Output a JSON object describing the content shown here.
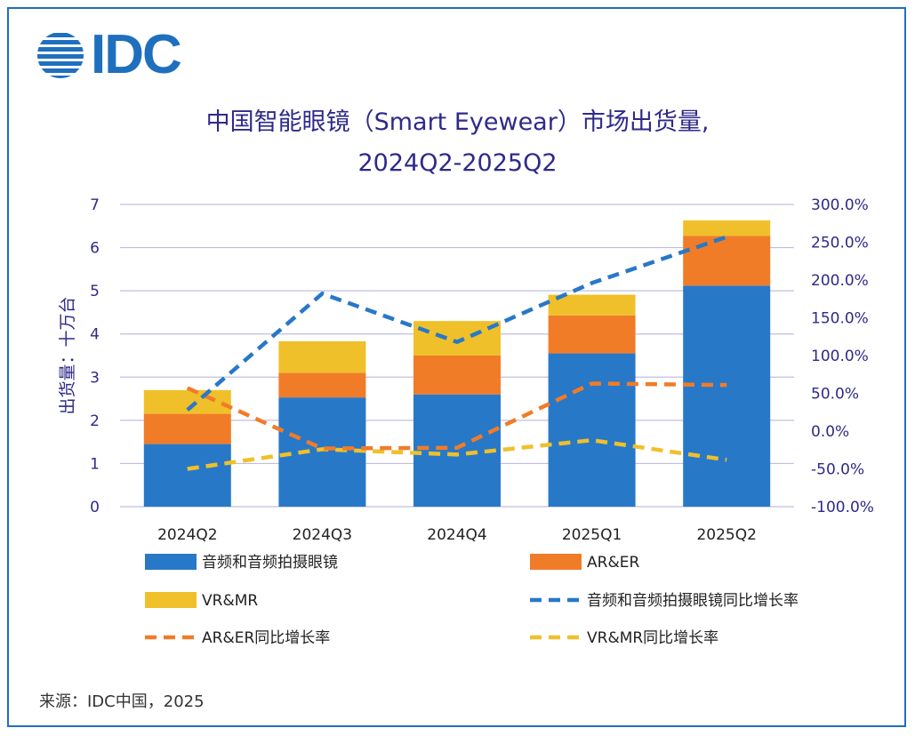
{
  "logo": {
    "text": "IDC"
  },
  "title_line1": "中国智能眼镜（Smart Eyewear）市场出货量,",
  "title_line2": "2024Q2-2025Q2",
  "source": "来源：IDC中国，2025",
  "colors": {
    "audio": "#2878c8",
    "ar": "#f07c28",
    "vr": "#f0c02a",
    "grid": "#bfbfe0",
    "axis_text": "#2e2a8a"
  },
  "chart_data": {
    "type": "bar",
    "stacked": true,
    "categories": [
      "2024Q2",
      "2024Q3",
      "2024Q4",
      "2025Q1",
      "2025Q2"
    ],
    "ylabel": "出货量：十万台",
    "ylim": [
      0,
      7
    ],
    "y_ticks": [
      "0",
      "1",
      "2",
      "3",
      "4",
      "5",
      "6",
      "7"
    ],
    "y2lim": [
      -100,
      300
    ],
    "y2_ticks": [
      "-100.0%",
      "-50.0%",
      "0.0%",
      "50.0%",
      "100.0%",
      "150.0%",
      "200.0%",
      "250.0%",
      "300.0%"
    ],
    "series": [
      {
        "name": "音频和音频拍摄眼镜",
        "type": "bar",
        "color": "#2878c8",
        "values": [
          1.45,
          2.53,
          2.6,
          3.55,
          5.12
        ]
      },
      {
        "name": "AR&ER",
        "type": "bar",
        "color": "#f07c28",
        "values": [
          0.7,
          0.57,
          0.9,
          0.88,
          1.15
        ]
      },
      {
        "name": "VR&MR",
        "type": "bar",
        "color": "#f0c02a",
        "values": [
          0.55,
          0.73,
          0.8,
          0.48,
          0.36
        ]
      },
      {
        "name": "音频和音频拍摄眼镜同比增长率",
        "type": "line",
        "axis": "right",
        "dashed": true,
        "color": "#2878c8",
        "values": [
          28,
          182,
          118,
          196,
          257
        ]
      },
      {
        "name": "AR&ER同比增长率",
        "type": "line",
        "axis": "right",
        "dashed": true,
        "color": "#f07c28",
        "values": [
          57,
          -23,
          -22,
          63,
          61
        ]
      },
      {
        "name": "VR&MR同比增长率",
        "type": "line",
        "axis": "right",
        "dashed": true,
        "color": "#f0c02a",
        "values": [
          -50,
          -24,
          -31,
          -12,
          -38
        ]
      }
    ]
  }
}
